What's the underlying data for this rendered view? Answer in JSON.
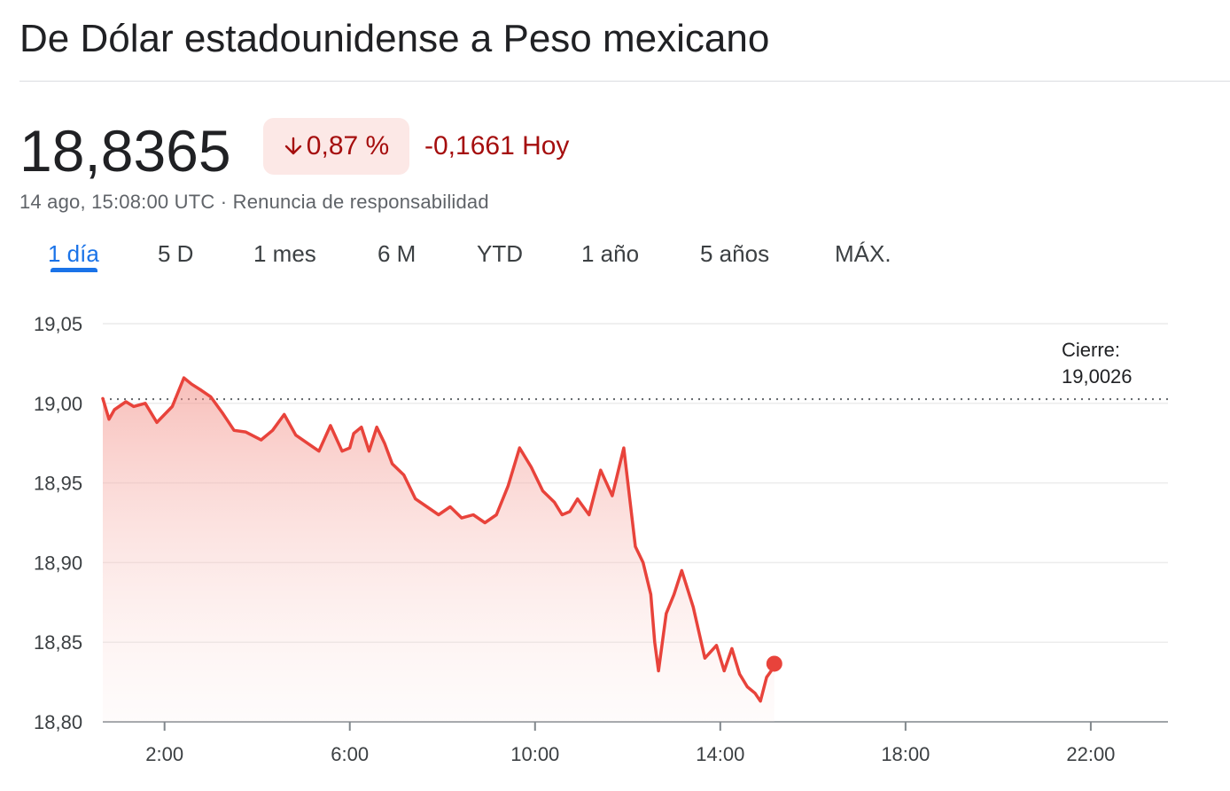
{
  "header": {
    "title": "De Dólar estadounidense a Peso mexicano"
  },
  "quote": {
    "price": "18,8365",
    "change_percent": "0,87 %",
    "change_abs": "-0,1661 Hoy",
    "direction_icon": "arrow-down-icon",
    "timestamp": "14 ago, 15:08:00 UTC",
    "separator": " · ",
    "disclaimer": "Renuncia de responsabilidad"
  },
  "tabs": [
    {
      "label": "1 día",
      "active": true
    },
    {
      "label": "5 D"
    },
    {
      "label": "1 mes"
    },
    {
      "label": "6 M"
    },
    {
      "label": "YTD"
    },
    {
      "label": "1 año"
    },
    {
      "label": "5 años"
    },
    {
      "label": "MÁX."
    }
  ],
  "colors": {
    "negative": "#a50e0e",
    "line": "#e8433b",
    "badge_bg": "#fce8e6",
    "accent": "#1a73e8"
  },
  "chart_data": {
    "type": "area",
    "ylim": [
      18.8,
      19.05
    ],
    "xlim": [
      "00:40",
      "23:40"
    ],
    "ytick_labels": [
      "19,05",
      "19,00",
      "18,95",
      "18,90",
      "18,85",
      "18,80"
    ],
    "xtick_labels": [
      "2:00",
      "6:00",
      "10:00",
      "14:00",
      "18:00",
      "22:00"
    ],
    "grid": true,
    "previous_close": {
      "label": "Cierre:",
      "value": 19.0026,
      "value_label": "19,0026"
    },
    "series": [
      {
        "x": [
          "00:40",
          "00:48",
          "00:55",
          "01:10",
          "01:20",
          "01:35",
          "01:50",
          "02:10",
          "02:25",
          "02:35",
          "02:48",
          "03:00",
          "03:15",
          "03:30",
          "03:45",
          "04:05",
          "04:20",
          "04:35",
          "04:50",
          "05:05",
          "05:20",
          "05:35",
          "05:50",
          "06:00",
          "06:05",
          "06:15",
          "06:25",
          "06:35",
          "06:45",
          "06:55",
          "07:10",
          "07:25",
          "07:40",
          "07:55",
          "08:10",
          "08:25",
          "08:40",
          "08:55",
          "09:10",
          "09:25",
          "09:40",
          "09:55",
          "10:10",
          "10:25",
          "10:35",
          "10:45",
          "10:55",
          "11:10",
          "11:25",
          "11:40",
          "11:55",
          "12:10",
          "12:20",
          "12:30",
          "12:35",
          "12:40",
          "12:50",
          "13:00",
          "13:10",
          "13:25",
          "13:40",
          "13:55",
          "14:05",
          "14:15",
          "14:25",
          "14:35",
          "14:45",
          "14:52",
          "15:00",
          "15:06",
          "15:10"
        ],
        "y": [
          19.003,
          18.99,
          18.996,
          19.001,
          18.998,
          19.0,
          18.988,
          18.998,
          19.016,
          19.012,
          19.008,
          19.004,
          18.994,
          18.983,
          18.982,
          18.977,
          18.983,
          18.993,
          18.98,
          18.975,
          18.97,
          18.986,
          18.97,
          18.972,
          18.981,
          18.985,
          18.97,
          18.985,
          18.975,
          18.962,
          18.955,
          18.94,
          18.935,
          18.93,
          18.935,
          18.928,
          18.93,
          18.925,
          18.93,
          18.948,
          18.972,
          18.96,
          18.945,
          18.938,
          18.93,
          18.932,
          18.94,
          18.93,
          18.958,
          18.942,
          18.972,
          18.91,
          18.9,
          18.88,
          18.85,
          18.832,
          18.868,
          18.88,
          18.895,
          18.872,
          18.84,
          18.848,
          18.832,
          18.846,
          18.83,
          18.822,
          18.818,
          18.813,
          18.828,
          18.832,
          18.8365
        ]
      }
    ]
  }
}
